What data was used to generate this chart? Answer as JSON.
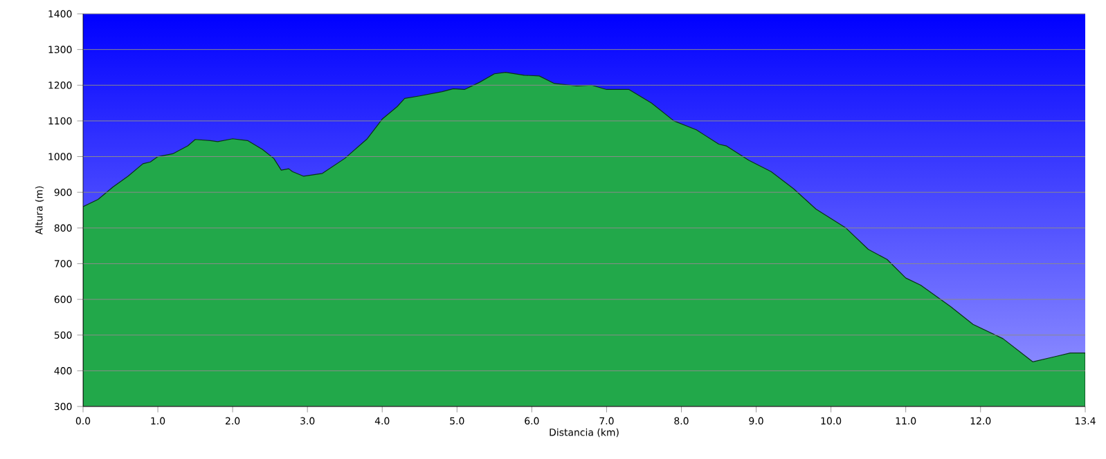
{
  "chart_data": {
    "type": "area",
    "xlabel": "Distancia    (km)",
    "ylabel": "Altura (m)",
    "x": [
      0,
      0.2,
      0.4,
      0.6,
      0.8,
      0.9,
      1.0,
      1.2,
      1.4,
      1.5,
      1.7,
      1.8,
      2.0,
      2.2,
      2.4,
      2.55,
      2.65,
      2.75,
      2.8,
      2.95,
      3.2,
      3.5,
      3.8,
      4.0,
      4.2,
      4.3,
      4.5,
      4.8,
      4.95,
      5.1,
      5.3,
      5.5,
      5.65,
      5.9,
      6.1,
      6.3,
      6.6,
      6.8,
      7.0,
      7.3,
      7.6,
      7.9,
      8.2,
      8.5,
      8.6,
      8.9,
      9.2,
      9.5,
      9.8,
      10.2,
      10.5,
      10.75,
      11.0,
      11.2,
      11.6,
      11.9,
      12.3,
      12.7,
      13.0,
      13.2,
      13.4
    ],
    "series": [
      {
        "color": "#22a84a",
        "values": [
          860,
          880,
          915,
          945,
          980,
          985,
          1000,
          1008,
          1030,
          1048,
          1045,
          1042,
          1050,
          1045,
          1020,
          995,
          962,
          966,
          958,
          945,
          953,
          995,
          1050,
          1105,
          1140,
          1163,
          1170,
          1182,
          1190,
          1188,
          1208,
          1232,
          1236,
          1228,
          1226,
          1205,
          1198,
          1200,
          1188,
          1188,
          1150,
          1100,
          1075,
          1035,
          1030,
          990,
          958,
          910,
          853,
          800,
          740,
          712,
          660,
          640,
          580,
          530,
          490,
          425,
          440,
          450,
          450
        ]
      }
    ],
    "xlim": [
      0,
      13.4
    ],
    "ylim": [
      300,
      1400
    ],
    "xticks": [
      {
        "value": 0,
        "label": "0.0"
      },
      {
        "value": 1,
        "label": "1.0"
      },
      {
        "value": 2,
        "label": "2.0"
      },
      {
        "value": 3,
        "label": "3.0"
      },
      {
        "value": 4,
        "label": "4.0"
      },
      {
        "value": 5,
        "label": "5.0"
      },
      {
        "value": 6,
        "label": "6.0"
      },
      {
        "value": 7,
        "label": "7.0"
      },
      {
        "value": 8,
        "label": "8.0"
      },
      {
        "value": 9,
        "label": "9.0"
      },
      {
        "value": 10,
        "label": "10.0"
      },
      {
        "value": 11,
        "label": "11.0"
      },
      {
        "value": 12,
        "label": "12.0"
      },
      {
        "value": 13.4,
        "label": "13.4"
      }
    ],
    "yticks": [
      300,
      400,
      500,
      600,
      700,
      800,
      900,
      1000,
      1100,
      1200,
      1300,
      1400
    ],
    "grid": "y"
  }
}
